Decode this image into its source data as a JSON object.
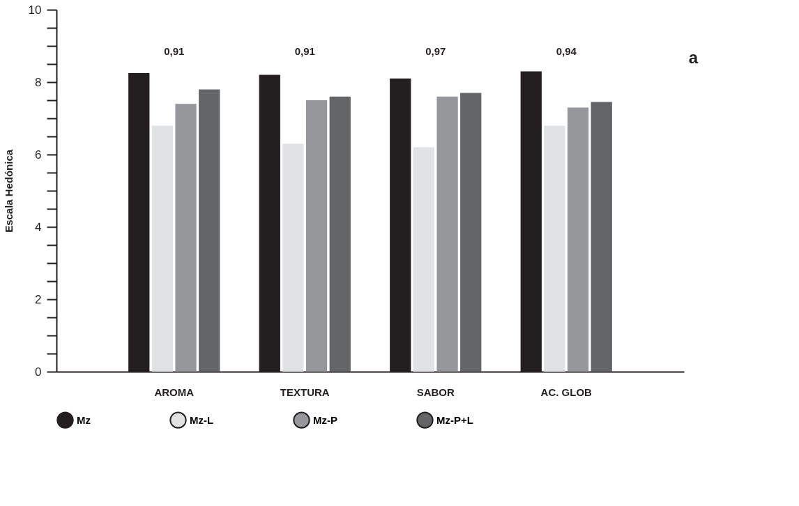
{
  "chart_data": {
    "type": "bar",
    "ylabel": "Escala Hedónica",
    "categories": [
      "AROMA",
      "TEXTURA",
      "SABOR",
      "AC. GLOB"
    ],
    "series": [
      {
        "name": "Mz",
        "color": "#231f20",
        "values": [
          8.25,
          8.2,
          8.1,
          8.3
        ]
      },
      {
        "name": "Mz-L",
        "color": "#e1e2e3",
        "values": [
          6.8,
          6.3,
          6.2,
          6.8
        ]
      },
      {
        "name": "Mz-P",
        "color": "#96979a",
        "values": [
          7.4,
          7.5,
          7.6,
          7.3
        ]
      },
      {
        "name": "Mz-P+L",
        "color": "#646567",
        "values": [
          7.8,
          7.6,
          7.7,
          7.45
        ]
      }
    ],
    "ylim": [
      0,
      10
    ],
    "yticks": [
      0,
      {
        "value": 0.5,
        "label": null
      },
      {
        "value": 1,
        "label": null
      },
      {
        "value": 1.5,
        "label": null
      },
      2,
      {
        "value": 2.5,
        "label": null
      },
      {
        "value": 3,
        "label": null
      },
      {
        "value": 3.5,
        "label": null
      },
      4,
      {
        "value": 4.5,
        "label": null
      },
      {
        "value": 5,
        "label": null
      },
      {
        "value": 5.5,
        "label": null
      },
      6,
      {
        "value": 6.5,
        "label": null
      },
      {
        "value": 7,
        "label": null
      },
      {
        "value": 7.5,
        "label": null
      },
      8,
      {
        "value": 8.5,
        "label": null
      },
      {
        "value": 9,
        "label": null
      },
      {
        "value": 9.5,
        "label": null
      },
      10
    ],
    "annotations": [
      "0,91",
      "0,91",
      "0,97",
      "0,94",
      "a"
    ],
    "grid": false,
    "legend": "bottom"
  }
}
